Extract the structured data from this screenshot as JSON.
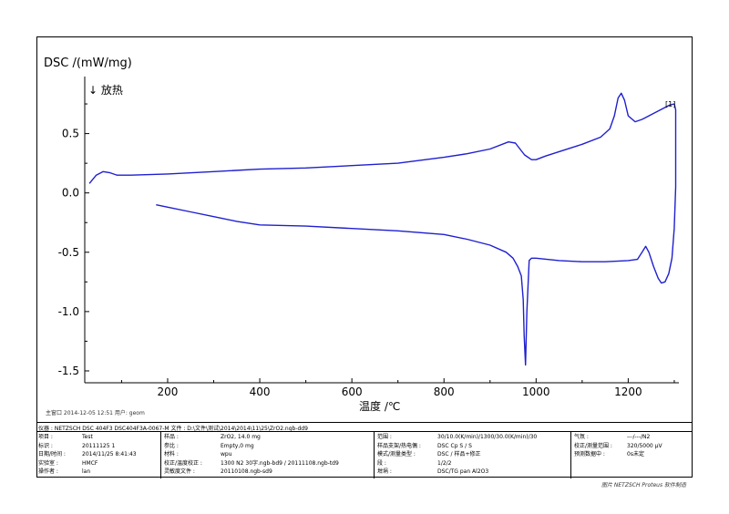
{
  "chart_data": {
    "type": "line",
    "ylabel": "DSC /(mW/mg)",
    "ylabel_note": "↓ 放热",
    "xlabel": "温度 /℃",
    "xlim": [
      20,
      1310
    ],
    "ylim": [
      -1.6,
      0.95
    ],
    "xticks": [
      "200",
      "400",
      "600",
      "800",
      "1000",
      "1200"
    ],
    "xtick_values": [
      200,
      400,
      600,
      800,
      1000,
      1200
    ],
    "yticks": [
      "0.5",
      "0.0",
      "-0.5",
      "-1.0",
      "-1.5"
    ],
    "ytick_values": [
      0.5,
      0.0,
      -0.5,
      -1.0,
      -1.5
    ],
    "curve_label": "[1]",
    "line_color": "#1f1fcf",
    "series": [
      {
        "name": "",
        "x": [
          30,
          45,
          60,
          75,
          90,
          120,
          200,
          300,
          400,
          500,
          600,
          700,
          800,
          850,
          900,
          940,
          955,
          965,
          975,
          990,
          1000,
          1020,
          1060,
          1100,
          1140,
          1160,
          1170,
          1178,
          1185,
          1192,
          1200,
          1215,
          1230,
          1250,
          1270,
          1290,
          1300,
          1303,
          1303,
          1300,
          1295,
          1288,
          1280,
          1272,
          1265,
          1255,
          1245,
          1238,
          1230,
          1220,
          1200,
          1150,
          1100,
          1050,
          1000,
          990,
          985,
          980,
          977,
          974,
          972,
          968,
          960,
          950,
          935,
          900,
          850,
          800,
          700,
          600,
          500,
          400,
          350,
          300,
          250,
          200,
          175
        ],
        "y": [
          0.08,
          0.15,
          0.18,
          0.17,
          0.15,
          0.15,
          0.16,
          0.18,
          0.2,
          0.21,
          0.23,
          0.25,
          0.3,
          0.33,
          0.37,
          0.43,
          0.42,
          0.37,
          0.32,
          0.28,
          0.28,
          0.31,
          0.36,
          0.41,
          0.47,
          0.54,
          0.65,
          0.8,
          0.84,
          0.78,
          0.65,
          0.6,
          0.62,
          0.66,
          0.7,
          0.74,
          0.75,
          0.7,
          0.05,
          -0.3,
          -0.55,
          -0.68,
          -0.75,
          -0.76,
          -0.72,
          -0.62,
          -0.5,
          -0.45,
          -0.5,
          -0.56,
          -0.57,
          -0.58,
          -0.58,
          -0.57,
          -0.55,
          -0.55,
          -0.57,
          -1.0,
          -1.45,
          -1.2,
          -0.9,
          -0.7,
          -0.62,
          -0.55,
          -0.5,
          -0.44,
          -0.39,
          -0.35,
          -0.32,
          -0.3,
          -0.28,
          -0.27,
          -0.24,
          -0.2,
          -0.16,
          -0.12,
          -0.1
        ]
      }
    ]
  },
  "footnote": "主窗口    2014-12-05 12:51    用户: geom",
  "branding": "图片 NETZSCH Proteus 软件制造",
  "info": {
    "header_line": "仪器 :  NETZSCH DSC 404F3 DSC404F3A-0067-M  文件 : D:\\文件\\测试\\2014\\2014\\11\\25\\ZrO2.ngb-dd9",
    "col1": [
      {
        "k": "项目 :",
        "v": "Test"
      },
      {
        "k": "标识 :",
        "v": "20111125 1"
      },
      {
        "k": "日期/时间 :",
        "v": "2014/11/25 8:41:43"
      },
      {
        "k": "实验室 :",
        "v": "HMCF"
      },
      {
        "k": "操作者 :",
        "v": "lan"
      }
    ],
    "col2": [
      {
        "k": "样品 :",
        "v": "ZrO2, 14.0 mg"
      },
      {
        "k": "参比 :",
        "v": "Empty,0 mg"
      },
      {
        "k": "材料 :",
        "v": "wpu"
      },
      {
        "k": "校正/温度校正 :",
        "v": "1300 N2 30字.ngb-bd9 / 20111108.ngb-td9"
      },
      {
        "k": "灵敏度文件 :",
        "v": "20110108.ngb-sd9"
      }
    ],
    "col3": [
      {
        "k": "范围 :",
        "v": "30/10.0(K/min)/1300/30.0(K/min)/30"
      },
      {
        "k": "样品支架/热电偶 :",
        "v": "DSC Cp S / S"
      },
      {
        "k": "模式/测量类型 :",
        "v": "DSC / 样品+修正"
      },
      {
        "k": "段 :",
        "v": "1/2/2"
      },
      {
        "k": "坩埚 :",
        "v": "DSC/TG pan Al2O3"
      }
    ],
    "col4": [
      {
        "k": "气氛 :",
        "v": "---/---/N2"
      },
      {
        "k": "校正/测量范围 :",
        "v": "320/5000 µV"
      },
      {
        "k": "预测数据中 :",
        "v": "0s未定"
      }
    ]
  }
}
